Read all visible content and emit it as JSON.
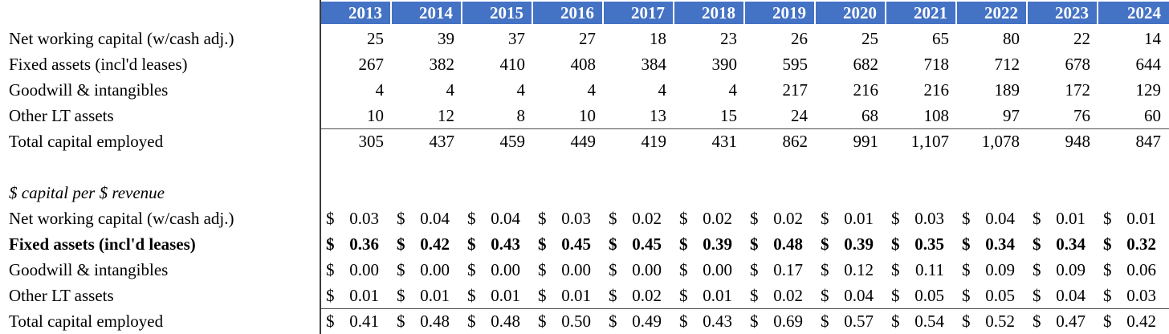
{
  "colors": {
    "header_bg": "#4472C4",
    "header_text": "#ffffff",
    "rule_line": "#4d4d4d"
  },
  "years": [
    "2013",
    "2014",
    "2015",
    "2016",
    "2017",
    "2018",
    "2019",
    "2020",
    "2021",
    "2022",
    "2023",
    "2024"
  ],
  "capital_table": {
    "rows": [
      {
        "label": "Net working capital (w/cash adj.)",
        "values": [
          "25",
          "39",
          "37",
          "27",
          "18",
          "23",
          "26",
          "25",
          "65",
          "80",
          "22",
          "14"
        ]
      },
      {
        "label": "Fixed assets (incl'd leases)",
        "values": [
          "267",
          "382",
          "410",
          "408",
          "384",
          "390",
          "595",
          "682",
          "718",
          "712",
          "678",
          "644"
        ]
      },
      {
        "label": "Goodwill & intangibles",
        "values": [
          "4",
          "4",
          "4",
          "4",
          "4",
          "4",
          "217",
          "216",
          "216",
          "189",
          "172",
          "129"
        ]
      },
      {
        "label": "Other LT assets",
        "values": [
          "10",
          "12",
          "8",
          "10",
          "13",
          "15",
          "24",
          "68",
          "108",
          "97",
          "76",
          "60"
        ]
      }
    ],
    "total": {
      "label": "Total capital employed",
      "values": [
        "305",
        "437",
        "459",
        "449",
        "419",
        "431",
        "862",
        "991",
        "1,107",
        "1,078",
        "948",
        "847"
      ]
    }
  },
  "ratio_table": {
    "section_label": "$ capital per $ revenue",
    "currency_symbol": "$",
    "rows": [
      {
        "label": "Net working capital (w/cash adj.)",
        "bold": false,
        "values": [
          "0.03",
          "0.04",
          "0.04",
          "0.03",
          "0.02",
          "0.02",
          "0.02",
          "0.01",
          "0.03",
          "0.04",
          "0.01",
          "0.01"
        ]
      },
      {
        "label": "Fixed assets (incl'd leases)",
        "bold": true,
        "values": [
          "0.36",
          "0.42",
          "0.43",
          "0.45",
          "0.45",
          "0.39",
          "0.48",
          "0.39",
          "0.35",
          "0.34",
          "0.34",
          "0.32"
        ]
      },
      {
        "label": "Goodwill & intangibles",
        "bold": false,
        "values": [
          "0.00",
          "0.00",
          "0.00",
          "0.00",
          "0.00",
          "0.00",
          "0.17",
          "0.12",
          "0.11",
          "0.09",
          "0.09",
          "0.06"
        ]
      },
      {
        "label": "Other LT assets",
        "bold": false,
        "values": [
          "0.01",
          "0.01",
          "0.01",
          "0.01",
          "0.02",
          "0.01",
          "0.02",
          "0.04",
          "0.05",
          "0.05",
          "0.04",
          "0.03"
        ]
      }
    ],
    "total": {
      "label": "Total capital employed",
      "values": [
        "0.41",
        "0.48",
        "0.48",
        "0.50",
        "0.49",
        "0.43",
        "0.69",
        "0.57",
        "0.54",
        "0.52",
        "0.47",
        "0.42"
      ]
    }
  }
}
